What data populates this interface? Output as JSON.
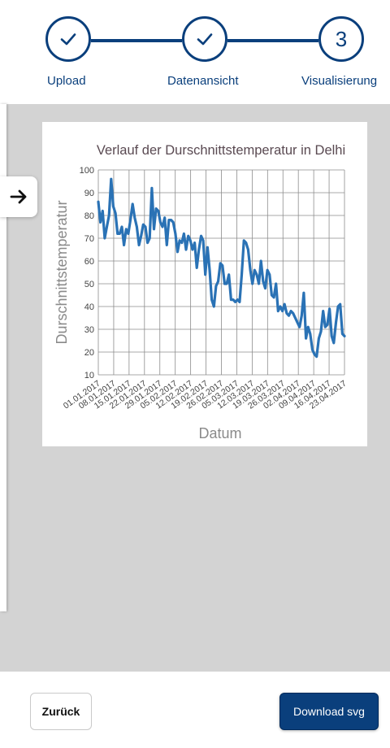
{
  "stepper": {
    "steps": [
      {
        "label": "Upload",
        "state": "done",
        "icon": "check-icon"
      },
      {
        "label": "Datenansicht",
        "state": "done",
        "icon": "check-icon"
      },
      {
        "label": "Visualisierung",
        "state": "current",
        "number": "3"
      }
    ]
  },
  "sidebar": {
    "toggle_icon": "arrow-right-icon"
  },
  "footer": {
    "back_label": "Zurück",
    "download_label": "Download svg"
  },
  "colors": {
    "primary": "#0a3f7c",
    "line": "#2a72b5",
    "background": "#d3d3d3"
  },
  "chart_data": {
    "type": "line",
    "title": "Verlauf der Durschnittstemperatur in Delhi",
    "xlabel": "Datum",
    "ylabel": "Durschnittstemperatur",
    "ylim": [
      10,
      100
    ],
    "y_ticks": [
      10,
      20,
      30,
      40,
      50,
      60,
      70,
      80,
      90,
      100
    ],
    "x_ticks": [
      "01.01.2017",
      "08.01.2017",
      "15.01.2017",
      "22.01.2017",
      "29.01.2017",
      "05.02.2017",
      "12.02.2017",
      "19.02.2017",
      "26.02.2017",
      "05.03.2017",
      "12.03.2017",
      "19.03.2017",
      "26.03.2017",
      "02.04.2017",
      "09.04.2017",
      "16.04.2017",
      "23.04.2017"
    ],
    "grid": true,
    "series": [
      {
        "name": "",
        "x_start": "01.01.2017",
        "x_step_days": 1,
        "values": [
          86,
          77,
          82,
          70,
          75,
          80,
          96,
          84,
          81,
          72,
          72,
          75,
          67,
          74,
          72,
          78,
          85,
          79,
          75,
          67,
          71,
          76,
          75,
          68,
          70,
          92,
          74,
          83,
          82,
          77,
          75,
          79,
          67,
          78,
          78,
          77,
          72,
          64,
          69,
          68,
          72,
          65,
          71,
          69,
          65,
          68,
          57,
          65,
          71,
          69,
          54,
          66,
          56,
          43,
          40,
          49,
          51,
          59,
          58,
          50,
          50,
          54,
          43,
          43,
          42,
          43,
          42,
          54,
          69,
          68,
          65,
          56,
          50,
          56,
          54,
          50,
          60,
          51,
          48,
          56,
          54,
          45,
          44,
          50,
          38,
          40,
          38,
          41,
          37,
          36,
          38,
          37,
          35,
          33,
          31,
          36,
          46,
          26,
          31,
          28,
          21,
          19,
          18,
          26,
          29,
          38,
          31,
          32,
          39,
          27,
          24,
          33,
          40,
          41,
          28,
          27
        ]
      }
    ]
  }
}
